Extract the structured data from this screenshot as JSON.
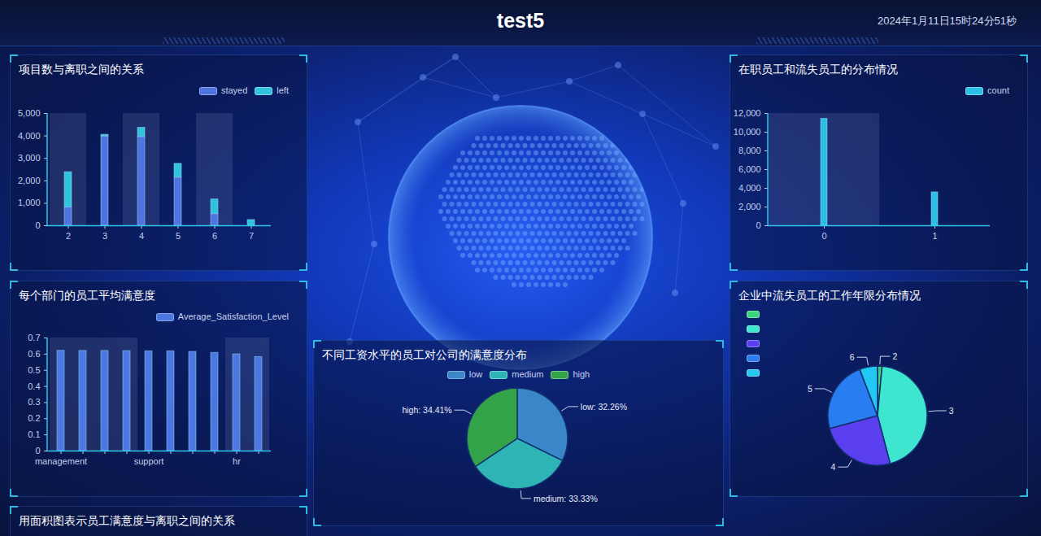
{
  "header": {
    "title": "test5",
    "datetime": "2024年1月11日15时24分51秒"
  },
  "chart_data": [
    {
      "type": "bar",
      "title": "项目数与离职之间的关系",
      "categories": [
        "2",
        "3",
        "4",
        "5",
        "6",
        "7"
      ],
      "series": [
        {
          "name": "stayed",
          "color": "#4f74e0",
          "values": [
            821,
            3983,
            3956,
            2149,
            519,
            0
          ]
        },
        {
          "name": "left",
          "color": "#2fc3dd",
          "values": [
            1567,
            72,
            409,
            612,
            655,
            256
          ]
        }
      ],
      "stacked": true,
      "legend": "top-right",
      "grid": false,
      "ylim": [
        0,
        5000
      ],
      "yticks": [
        0,
        {
          "value": 1000,
          "label": "1,000"
        },
        {
          "value": 2000,
          "label": "2,000"
        },
        {
          "value": 3000,
          "label": "3,000"
        },
        {
          "value": 4000,
          "label": "4,000"
        },
        {
          "value": 5000,
          "label": "5,000"
        }
      ]
    },
    {
      "type": "bar",
      "title": "在职员工和流失员工的分布情况",
      "categories": [
        "0",
        "1"
      ],
      "series": [
        {
          "name": "count",
          "color": "#2cbfe6",
          "values": [
            11428,
            3571
          ]
        }
      ],
      "legend": "top-right",
      "grid": false,
      "ylim": [
        0,
        12000
      ],
      "yticks": [
        0,
        {
          "value": 2000,
          "label": "2,000"
        },
        {
          "value": 4000,
          "label": "4,000"
        },
        {
          "value": 6000,
          "label": "6,000"
        },
        {
          "value": 8000,
          "label": "8,000"
        },
        {
          "value": 10000,
          "label": "10,000"
        },
        {
          "value": 12000,
          "label": "12,000"
        }
      ]
    },
    {
      "type": "bar",
      "title": "每个部门的员工平均满意度",
      "categories": [
        "management",
        null,
        null,
        null,
        "support",
        null,
        null,
        null,
        "hr",
        null
      ],
      "series": [
        {
          "name": "Average_Satisfaction_Level",
          "color": "#4a78e0",
          "values": [
            0.621,
            0.62,
            0.62,
            0.619,
            0.618,
            0.618,
            0.614,
            0.608,
            0.599,
            0.582
          ]
        }
      ],
      "legend": "top-right",
      "grid": false,
      "ylim": [
        0,
        0.7
      ],
      "yticks": [
        0,
        0.1,
        0.2,
        0.3,
        0.4,
        0.5,
        0.6,
        0.7
      ]
    },
    {
      "type": "pie",
      "title": "不同工资水平的员工对公司的满意度分布",
      "categories": [
        "low",
        "medium",
        "high"
      ],
      "values": [
        32.26,
        33.33,
        34.41
      ],
      "value_labels": [
        "low: 32.26%",
        "medium: 33.33%",
        "high: 34.41%"
      ],
      "colors": [
        "#3a86c8",
        "#2fb4b6",
        "#33a34a"
      ],
      "data_labels": true,
      "legend": "top"
    },
    {
      "type": "pie",
      "title": "企业中流失员工的工作年限分布情况",
      "categories": [
        "2",
        "3",
        "4",
        "5",
        "6"
      ],
      "values": [
        53,
        1586,
        890,
        833,
        209
      ],
      "colors": [
        "#3bd47c",
        "#3ee6d0",
        "#5a3ff0",
        "#2a7df0",
        "#22c8f2"
      ],
      "data_labels": false,
      "legend": "top-left"
    },
    {
      "type": "area",
      "title": "用面积图表示员工满意度与离职之间的关系"
    }
  ]
}
